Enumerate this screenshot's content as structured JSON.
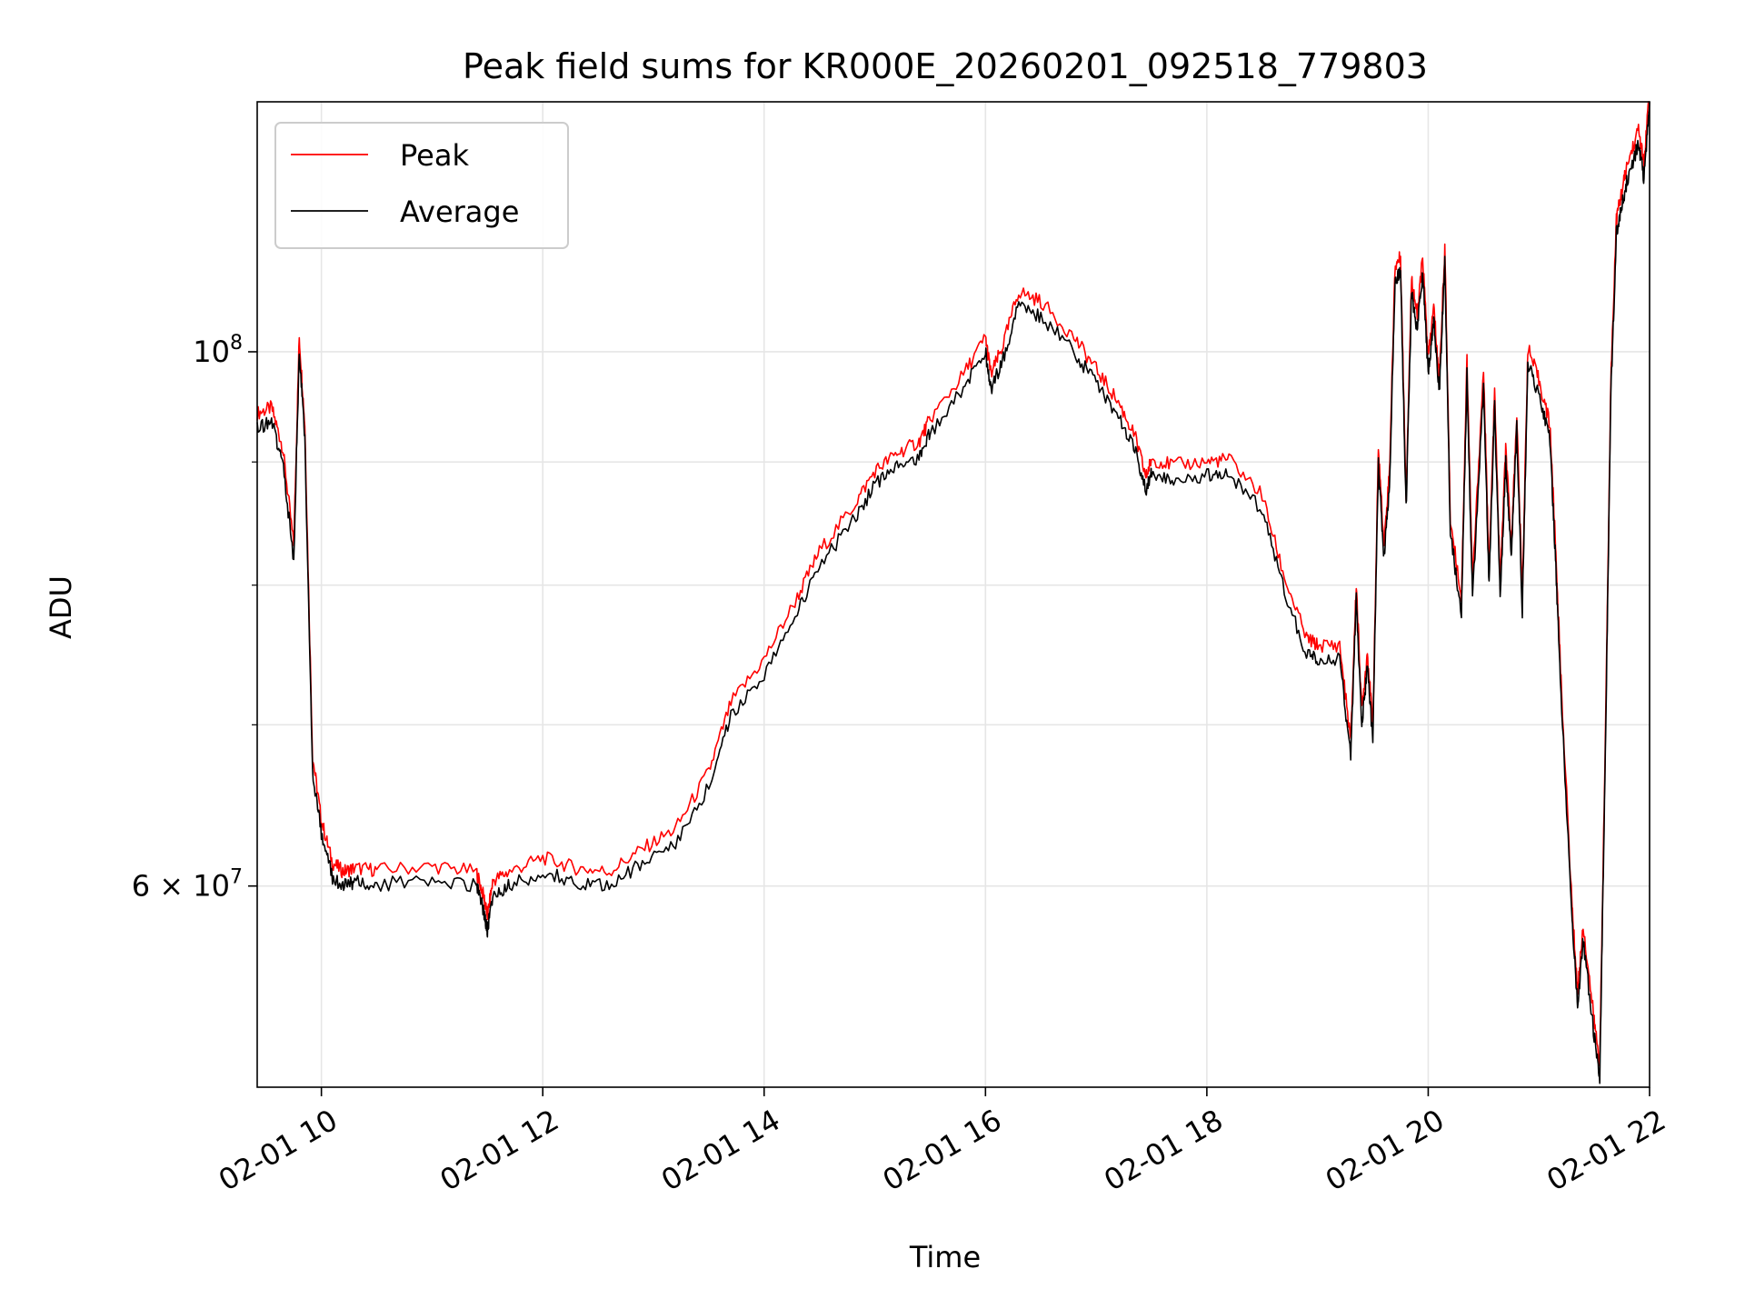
{
  "chart_data": {
    "type": "line",
    "title": "Peak field sums for KR000E_20260201_092518_779803",
    "xlabel": "Time",
    "ylabel": "ADU",
    "y_scale": "log",
    "ylim": [
      49500000,
      127000000
    ],
    "xlim_hours": [
      9.42,
      22.0
    ],
    "grid": true,
    "legend_position": "top-left",
    "x_ticks": [
      {
        "hour": 10,
        "label": "02-01 10"
      },
      {
        "hour": 12,
        "label": "02-01 12"
      },
      {
        "hour": 14,
        "label": "02-01 14"
      },
      {
        "hour": 16,
        "label": "02-01 16"
      },
      {
        "hour": 18,
        "label": "02-01 18"
      },
      {
        "hour": 20,
        "label": "02-01 20"
      },
      {
        "hour": 22,
        "label": "02-01 22"
      }
    ],
    "y_major_ticks": [
      {
        "value": 100000000,
        "base": "10",
        "exp": "8",
        "prefix": ""
      },
      {
        "value": 60000000,
        "base": "10",
        "exp": "7",
        "prefix": "6 × "
      }
    ],
    "y_minor_ticks": [
      70000000,
      80000000,
      90000000
    ],
    "series": [
      {
        "name": "Peak",
        "color": "#ff0000",
        "offset": 0.006
      },
      {
        "name": "Average",
        "color": "#000000",
        "offset": 0.0
      }
    ],
    "x_hours": [
      9.42,
      9.55,
      9.65,
      9.75,
      9.8,
      9.85,
      9.92,
      10.0,
      10.1,
      10.2,
      10.3,
      10.5,
      11.0,
      11.4,
      11.47,
      11.5,
      11.55,
      11.7,
      12.0,
      12.3,
      12.6,
      12.9,
      13.2,
      13.5,
      13.7,
      14.0,
      14.3,
      14.5,
      14.8,
      15.0,
      15.2,
      15.4,
      15.5,
      15.8,
      16.0,
      16.05,
      16.15,
      16.3,
      16.5,
      16.8,
      17.0,
      17.2,
      17.35,
      17.45,
      17.5,
      17.7,
      18.0,
      18.2,
      18.5,
      18.7,
      18.9,
      19.0,
      19.2,
      19.3,
      19.35,
      19.4,
      19.45,
      19.5,
      19.55,
      19.6,
      19.65,
      19.7,
      19.75,
      19.8,
      19.85,
      19.9,
      19.95,
      20.0,
      20.05,
      20.1,
      20.15,
      20.2,
      20.3,
      20.35,
      20.4,
      20.5,
      20.55,
      20.6,
      20.65,
      20.7,
      20.75,
      20.8,
      20.85,
      20.9,
      21.0,
      21.1,
      21.15,
      21.2,
      21.3,
      21.35,
      21.4,
      21.5,
      21.55,
      21.6,
      21.65,
      21.7,
      21.75,
      21.8,
      21.9,
      21.95,
      22.0
    ],
    "values_average": [
      93000000,
      93500000,
      90000000,
      82000000,
      100000000,
      92000000,
      67000000,
      63000000,
      60500000,
      60000000,
      60200000,
      60100000,
      60300000,
      60000000,
      58500000,
      57500000,
      59500000,
      60000000,
      60800000,
      60200000,
      60000000,
      61300000,
      62500000,
      66000000,
      70500000,
      73500000,
      78000000,
      81500000,
      85000000,
      88000000,
      89500000,
      90500000,
      92500000,
      96500000,
      100000000,
      96500000,
      99000000,
      104500000,
      103500000,
      100000000,
      97000000,
      94000000,
      91000000,
      87500000,
      89000000,
      88500000,
      88800000,
      89000000,
      86000000,
      79500000,
      75000000,
      74500000,
      74500000,
      68000000,
      79000000,
      70000000,
      74000000,
      69000000,
      90000000,
      82000000,
      88000000,
      107000000,
      108000000,
      86000000,
      106000000,
      102000000,
      108000000,
      98000000,
      103000000,
      96000000,
      109000000,
      84000000,
      78000000,
      98000000,
      79000000,
      97000000,
      80000000,
      95000000,
      79000000,
      90000000,
      82000000,
      93000000,
      78000000,
      99000000,
      96000000,
      92000000,
      82000000,
      72000000,
      58000000,
      53500000,
      57000000,
      52000000,
      50000000,
      68000000,
      96000000,
      112000000,
      115000000,
      118000000,
      122000000,
      118000000,
      127000000
    ]
  },
  "y_label_text": "ADU",
  "legend": {
    "items": [
      {
        "label": "Peak",
        "color": "#ff0000"
      },
      {
        "label": "Average",
        "color": "#000000"
      }
    ]
  }
}
